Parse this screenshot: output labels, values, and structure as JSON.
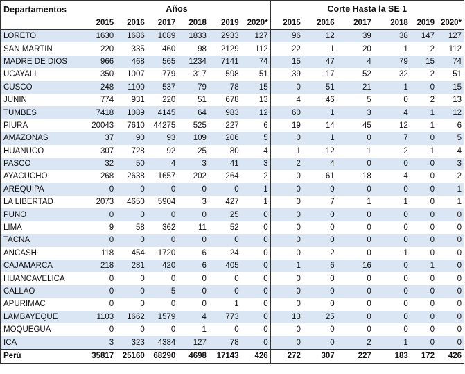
{
  "headers": {
    "departamentos": "Departamentos",
    "anios": "Años",
    "corte": "Corte Hasta la SE 1",
    "years": [
      "2015",
      "2016",
      "2017",
      "2018",
      "2019",
      "2020*"
    ]
  },
  "rows": [
    {
      "name": "LORETO",
      "a": [
        "1630",
        "1686",
        "1089",
        "1833",
        "2933",
        "127"
      ],
      "c": [
        "96",
        "12",
        "39",
        "38",
        "147",
        "127"
      ]
    },
    {
      "name": "SAN MARTIN",
      "a": [
        "220",
        "335",
        "460",
        "98",
        "2129",
        "112"
      ],
      "c": [
        "22",
        "1",
        "20",
        "1",
        "2",
        "112"
      ]
    },
    {
      "name": "MADRE DE DIOS",
      "a": [
        "966",
        "468",
        "565",
        "1234",
        "7141",
        "74"
      ],
      "c": [
        "15",
        "47",
        "4",
        "79",
        "15",
        "74"
      ]
    },
    {
      "name": "UCAYALI",
      "a": [
        "350",
        "1007",
        "779",
        "317",
        "598",
        "51"
      ],
      "c": [
        "39",
        "17",
        "52",
        "32",
        "2",
        "51"
      ]
    },
    {
      "name": "CUSCO",
      "a": [
        "248",
        "1100",
        "537",
        "79",
        "78",
        "15"
      ],
      "c": [
        "0",
        "51",
        "21",
        "1",
        "0",
        "15"
      ]
    },
    {
      "name": "JUNIN",
      "a": [
        "774",
        "931",
        "220",
        "51",
        "678",
        "13"
      ],
      "c": [
        "4",
        "46",
        "5",
        "0",
        "2",
        "13"
      ]
    },
    {
      "name": "TUMBES",
      "a": [
        "7418",
        "1089",
        "4145",
        "64",
        "983",
        "12"
      ],
      "c": [
        "60",
        "1",
        "3",
        "4",
        "1",
        "12"
      ]
    },
    {
      "name": "PIURA",
      "a": [
        "20043",
        "7610",
        "44275",
        "525",
        "227",
        "6"
      ],
      "c": [
        "19",
        "14",
        "45",
        "12",
        "1",
        "6"
      ]
    },
    {
      "name": "AMAZONAS",
      "a": [
        "37",
        "90",
        "93",
        "109",
        "206",
        "5"
      ],
      "c": [
        "0",
        "1",
        "0",
        "7",
        "0",
        "5"
      ]
    },
    {
      "name": "HUANUCO",
      "a": [
        "307",
        "728",
        "92",
        "25",
        "80",
        "4"
      ],
      "c": [
        "1",
        "12",
        "1",
        "2",
        "1",
        "4"
      ]
    },
    {
      "name": "PASCO",
      "a": [
        "32",
        "50",
        "4",
        "3",
        "41",
        "3"
      ],
      "c": [
        "2",
        "4",
        "0",
        "0",
        "0",
        "3"
      ]
    },
    {
      "name": "AYACUCHO",
      "a": [
        "268",
        "2638",
        "1657",
        "202",
        "264",
        "2"
      ],
      "c": [
        "0",
        "61",
        "18",
        "4",
        "0",
        "2"
      ]
    },
    {
      "name": "AREQUIPA",
      "a": [
        "0",
        "0",
        "0",
        "0",
        "0",
        "1"
      ],
      "c": [
        "0",
        "0",
        "0",
        "0",
        "0",
        "1"
      ]
    },
    {
      "name": "LA LIBERTAD",
      "a": [
        "2073",
        "4650",
        "5904",
        "3",
        "427",
        "1"
      ],
      "c": [
        "0",
        "7",
        "1",
        "1",
        "0",
        "1"
      ]
    },
    {
      "name": "PUNO",
      "a": [
        "0",
        "0",
        "0",
        "0",
        "25",
        "0"
      ],
      "c": [
        "0",
        "0",
        "0",
        "0",
        "0",
        "0"
      ]
    },
    {
      "name": "LIMA",
      "a": [
        "9",
        "58",
        "362",
        "11",
        "52",
        "0"
      ],
      "c": [
        "0",
        "0",
        "0",
        "0",
        "0",
        "0"
      ]
    },
    {
      "name": "TACNA",
      "a": [
        "0",
        "0",
        "0",
        "0",
        "0",
        "0"
      ],
      "c": [
        "0",
        "0",
        "0",
        "0",
        "0",
        "0"
      ]
    },
    {
      "name": "ANCASH",
      "a": [
        "118",
        "454",
        "1720",
        "6",
        "24",
        "0"
      ],
      "c": [
        "0",
        "2",
        "0",
        "1",
        "0",
        "0"
      ]
    },
    {
      "name": "CAJAMARCA",
      "a": [
        "218",
        "281",
        "420",
        "6",
        "405",
        "0"
      ],
      "c": [
        "1",
        "6",
        "16",
        "0",
        "1",
        "0"
      ]
    },
    {
      "name": "HUANCAVELICA",
      "a": [
        "0",
        "0",
        "0",
        "0",
        "0",
        "0"
      ],
      "c": [
        "0",
        "0",
        "0",
        "0",
        "0",
        "0"
      ]
    },
    {
      "name": "CALLAO",
      "a": [
        "0",
        "0",
        "5",
        "0",
        "0",
        "0"
      ],
      "c": [
        "0",
        "0",
        "0",
        "0",
        "0",
        "0"
      ]
    },
    {
      "name": "APURIMAC",
      "a": [
        "0",
        "0",
        "0",
        "0",
        "1",
        "0"
      ],
      "c": [
        "0",
        "0",
        "0",
        "0",
        "0",
        "0"
      ]
    },
    {
      "name": "LAMBAYEQUE",
      "a": [
        "1103",
        "1662",
        "1579",
        "4",
        "773",
        "0"
      ],
      "c": [
        "13",
        "25",
        "0",
        "0",
        "0",
        "0"
      ]
    },
    {
      "name": "MOQUEGUA",
      "a": [
        "0",
        "0",
        "0",
        "1",
        "0",
        "0"
      ],
      "c": [
        "0",
        "0",
        "0",
        "0",
        "0",
        "0"
      ]
    },
    {
      "name": "ICA",
      "a": [
        "3",
        "323",
        "4384",
        "127",
        "78",
        "0"
      ],
      "c": [
        "0",
        "0",
        "2",
        "1",
        "0",
        "0"
      ]
    }
  ],
  "total": {
    "name": "Perú",
    "a": [
      "35817",
      "25160",
      "68290",
      "4698",
      "17143",
      "426"
    ],
    "c": [
      "272",
      "307",
      "227",
      "183",
      "172",
      "426"
    ]
  },
  "colors": {
    "band": "#dbe6f4",
    "rule": "#333333"
  }
}
